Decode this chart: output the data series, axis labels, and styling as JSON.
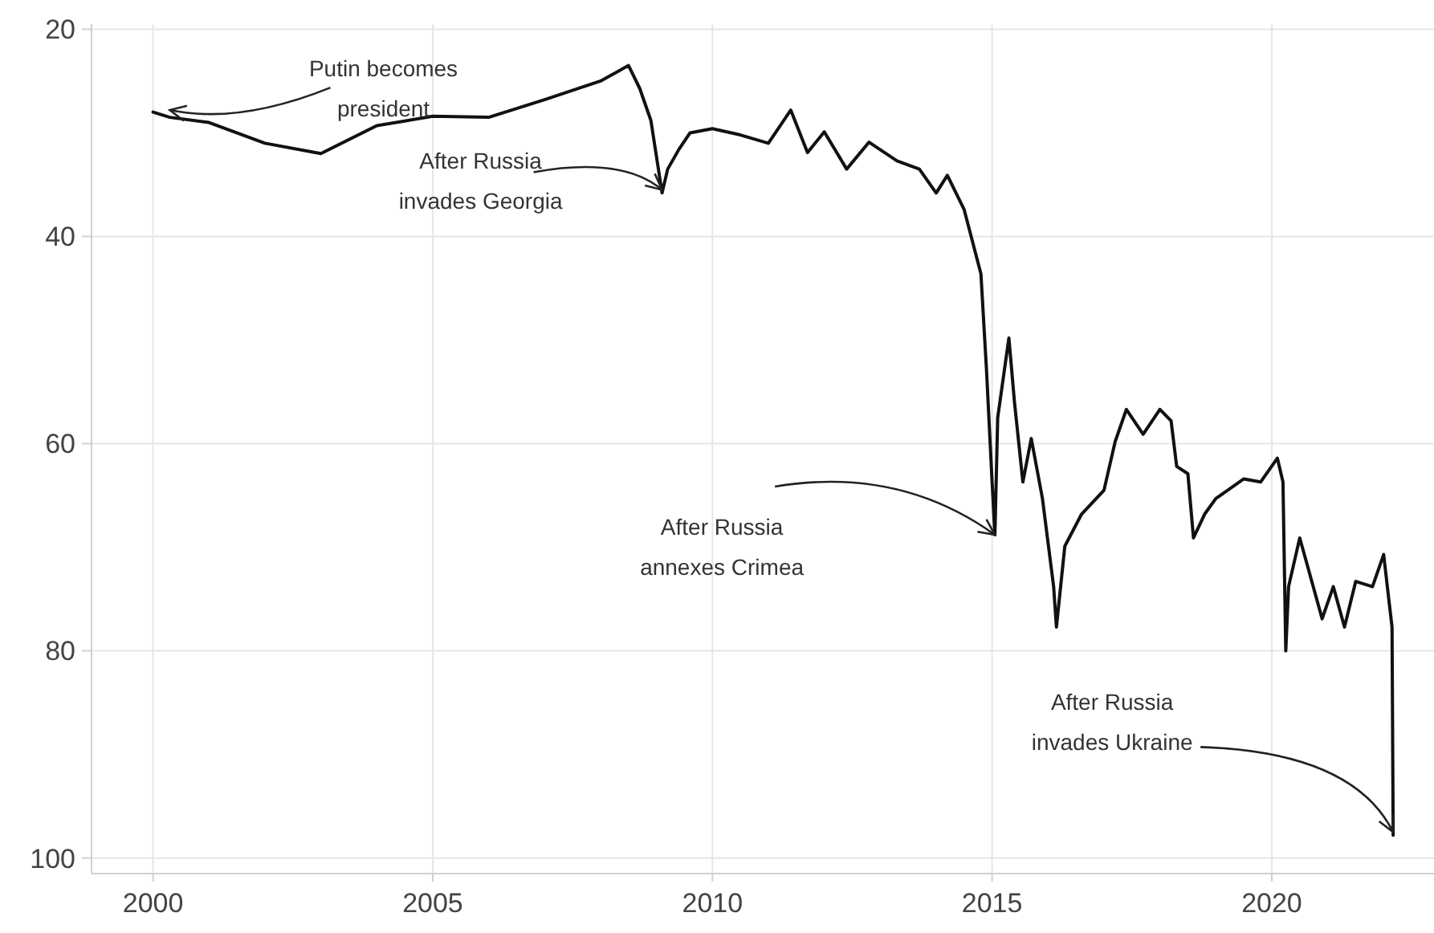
{
  "chart_data": {
    "type": "line",
    "x": [
      2000.0,
      2000.3,
      2001.0,
      2002.0,
      2003.0,
      2004.0,
      2005.0,
      2006.0,
      2007.0,
      2008.0,
      2008.5,
      2008.7,
      2008.9,
      2009.1,
      2009.2,
      2009.4,
      2009.6,
      2010.0,
      2010.5,
      2011.0,
      2011.4,
      2011.7,
      2012.0,
      2012.4,
      2012.8,
      2013.3,
      2013.7,
      2014.0,
      2014.2,
      2014.5,
      2014.8,
      2014.9,
      2015.0,
      2015.05,
      2015.1,
      2015.3,
      2015.4,
      2015.55,
      2015.7,
      2015.9,
      2016.1,
      2016.15,
      2016.3,
      2016.6,
      2017.0,
      2017.2,
      2017.4,
      2017.7,
      2018.0,
      2018.2,
      2018.3,
      2018.5,
      2018.6,
      2018.8,
      2019.0,
      2019.5,
      2019.8,
      2020.1,
      2020.2,
      2020.25,
      2020.3,
      2020.5,
      2020.9,
      2021.1,
      2021.3,
      2021.5,
      2021.8,
      2022.0,
      2022.1,
      2022.15,
      2022.17
    ],
    "series": [
      {
        "color": "#111111",
        "values": [
          28,
          28.5,
          29,
          31,
          32,
          29.3,
          28.4,
          28.5,
          26.8,
          25,
          23.5,
          25.7,
          28.8,
          35.8,
          33.5,
          31.6,
          30,
          29.6,
          30.2,
          31,
          27.8,
          31.9,
          29.9,
          33.5,
          30.9,
          32.7,
          33.5,
          35.8,
          34.1,
          37.4,
          43.6,
          52.9,
          63.7,
          68.8,
          57.5,
          49.8,
          56,
          63.7,
          59.5,
          65.3,
          73.8,
          77.7,
          69.9,
          66.8,
          64.5,
          59.8,
          56.7,
          59.1,
          56.7,
          57.8,
          62.2,
          62.9,
          69.1,
          66.8,
          65.3,
          63.4,
          63.7,
          61.4,
          63.7,
          80,
          73.8,
          69.1,
          76.9,
          73.8,
          77.7,
          73.3,
          73.8,
          70.7,
          75.4,
          77.7,
          97.8
        ]
      }
    ],
    "xlim": [
      1998.9,
      2022.9
    ],
    "xticks": [
      2000,
      2005,
      2010,
      2015,
      2020
    ],
    "ylim": [
      101.5,
      19.5
    ],
    "yticks": [
      20,
      40,
      60,
      80,
      100
    ],
    "grid": true,
    "annotations": [
      {
        "text": "Putin becomes president",
        "x": 2000.3,
        "y": 27.8
      },
      {
        "text": "After Russia invades Georgia",
        "x": 2009.1,
        "y": 35.5
      },
      {
        "text": "After Russia annexes Crimea",
        "x": 2015.05,
        "y": 68.8
      },
      {
        "text": "After Russia invades Ukraine",
        "x": 2022.17,
        "y": 97.5
      }
    ]
  }
}
